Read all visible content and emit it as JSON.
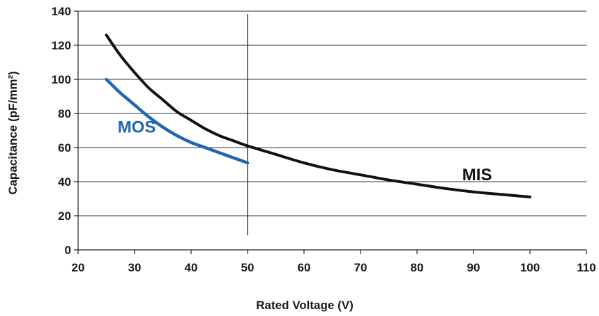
{
  "chart_data": {
    "type": "line",
    "title": "",
    "xlabel": "Rated Voltage (V)",
    "ylabel": "Capacitance (pF/mm²)",
    "xlim": [
      20,
      110
    ],
    "ylim": [
      0,
      140
    ],
    "x_ticks": [
      20,
      30,
      40,
      50,
      60,
      70,
      80,
      90,
      100,
      110
    ],
    "y_ticks": [
      0,
      20,
      40,
      60,
      80,
      100,
      120,
      140
    ],
    "grid": "horizontal",
    "vertical_marker_x": 50,
    "series": [
      {
        "name": "MIS",
        "color": "#111111",
        "x": [
          25,
          27.5,
          30,
          32.5,
          35,
          37.5,
          40,
          42.5,
          45,
          47.5,
          50,
          55,
          60,
          65,
          70,
          75,
          80,
          85,
          90,
          95,
          100
        ],
        "y": [
          126,
          114,
          104,
          95,
          88,
          81,
          76,
          71,
          67,
          64,
          61,
          56,
          51,
          47,
          44,
          41,
          38.5,
          36,
          34,
          32.5,
          31
        ]
      },
      {
        "name": "MOS",
        "color": "#1f67b1",
        "x": [
          25,
          27.5,
          30,
          32.5,
          35,
          37.5,
          40,
          42.5,
          45,
          47.5,
          50
        ],
        "y": [
          100,
          92,
          85,
          78,
          72,
          67,
          63,
          60,
          57,
          54,
          51
        ]
      }
    ],
    "annotations": [
      {
        "text": "MOS",
        "x": 27,
        "y": 72,
        "color": "#1f67b1"
      },
      {
        "text": "MIS",
        "x": 88,
        "y": 44,
        "color": "#111111"
      }
    ]
  }
}
